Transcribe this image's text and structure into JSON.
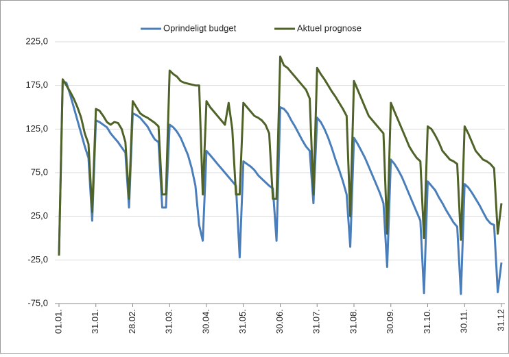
{
  "chart_data": {
    "type": "line",
    "categories": [
      "01.01.",
      null,
      null,
      null,
      null,
      null,
      null,
      null,
      null,
      null,
      "31.01.",
      null,
      null,
      null,
      null,
      null,
      null,
      null,
      null,
      null,
      "28.02.",
      null,
      null,
      null,
      null,
      null,
      null,
      null,
      null,
      null,
      "31.03.",
      null,
      null,
      null,
      null,
      null,
      null,
      null,
      null,
      null,
      "30.04.",
      null,
      null,
      null,
      null,
      null,
      null,
      null,
      null,
      null,
      "31.05.",
      null,
      null,
      null,
      null,
      null,
      null,
      null,
      null,
      null,
      "30.06.",
      null,
      null,
      null,
      null,
      null,
      null,
      null,
      null,
      null,
      "31.07.",
      null,
      null,
      null,
      null,
      null,
      null,
      null,
      null,
      null,
      "31.08.",
      null,
      null,
      null,
      null,
      null,
      null,
      null,
      null,
      null,
      "30.09.",
      null,
      null,
      null,
      null,
      null,
      null,
      null,
      null,
      null,
      "31.10.",
      null,
      null,
      null,
      null,
      null,
      null,
      null,
      null,
      null,
      "30.11.",
      null,
      null,
      null,
      null,
      null,
      null,
      null,
      null,
      null,
      "31.12"
    ],
    "series": [
      {
        "name": "Oprindeligt budget",
        "color": "#4a7ebb",
        "values": [
          -20,
          180,
          178,
          165,
          150,
          135,
          120,
          105,
          92,
          20,
          135,
          133,
          130,
          127,
          120,
          115,
          110,
          104,
          98,
          35,
          143,
          141,
          138,
          133,
          128,
          120,
          113,
          110,
          35,
          35,
          130,
          127,
          122,
          115,
          105,
          95,
          80,
          60,
          15,
          -3,
          100,
          95,
          90,
          85,
          80,
          75,
          70,
          65,
          60,
          -22,
          88,
          85,
          82,
          78,
          72,
          68,
          64,
          60,
          57,
          -3,
          150,
          148,
          143,
          135,
          128,
          120,
          112,
          105,
          100,
          40,
          138,
          133,
          125,
          115,
          103,
          90,
          78,
          65,
          50,
          -10,
          115,
          108,
          100,
          92,
          82,
          72,
          62,
          52,
          40,
          -33,
          90,
          85,
          78,
          70,
          60,
          50,
          40,
          30,
          20,
          -63,
          65,
          60,
          55,
          47,
          40,
          32,
          25,
          18,
          13,
          -64,
          62,
          58,
          52,
          45,
          38,
          30,
          22,
          17,
          15,
          -62,
          -28
        ]
      },
      {
        "name": "Aktuel prognose",
        "color": "#4f6228",
        "values": [
          -20,
          182,
          175,
          168,
          160,
          150,
          138,
          120,
          108,
          30,
          148,
          146,
          140,
          133,
          130,
          133,
          132,
          125,
          110,
          45,
          157,
          150,
          143,
          140,
          138,
          135,
          132,
          128,
          50,
          50,
          192,
          188,
          185,
          180,
          178,
          177,
          176,
          175,
          175,
          50,
          157,
          150,
          145,
          140,
          135,
          130,
          155,
          125,
          50,
          50,
          155,
          150,
          145,
          140,
          138,
          135,
          130,
          120,
          45,
          45,
          208,
          198,
          195,
          190,
          185,
          180,
          175,
          170,
          160,
          50,
          195,
          188,
          182,
          175,
          168,
          162,
          155,
          148,
          140,
          25,
          180,
          170,
          160,
          150,
          140,
          135,
          130,
          125,
          120,
          5,
          155,
          145,
          135,
          125,
          115,
          105,
          98,
          92,
          88,
          0,
          128,
          125,
          118,
          110,
          100,
          95,
          90,
          88,
          85,
          -2,
          128,
          120,
          110,
          100,
          95,
          90,
          88,
          85,
          80,
          5,
          40
        ]
      }
    ],
    "ylim": [
      -75,
      225
    ],
    "yticks": [
      {
        "value": -75,
        "label": "-75,0"
      },
      {
        "value": -25,
        "label": "-25,0"
      },
      {
        "value": 25,
        "label": "25,0"
      },
      {
        "value": 75,
        "label": "75,0"
      },
      {
        "value": 125,
        "label": "125,0"
      },
      {
        "value": 175,
        "label": "175,0"
      },
      {
        "value": 225,
        "label": "225,0"
      }
    ],
    "grid": true,
    "legend": "top"
  }
}
